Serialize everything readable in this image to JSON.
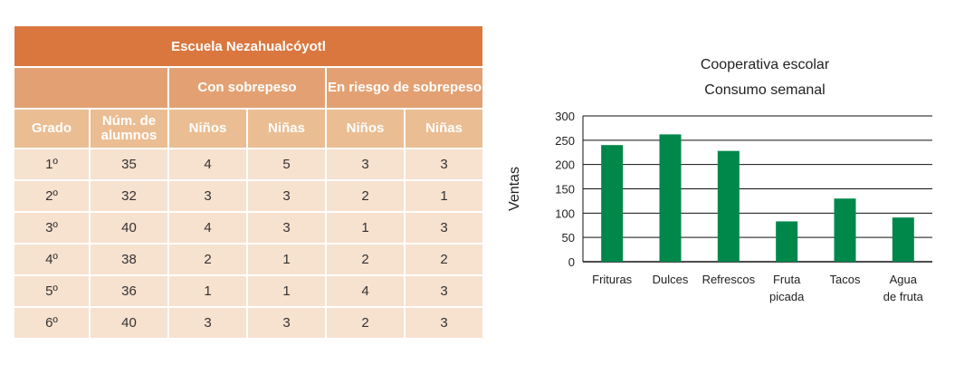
{
  "table": {
    "title": "Escuela Nezahualcóyotl",
    "groups": [
      "Con sobrepeso",
      "En riesgo de sobrepeso"
    ],
    "columns": [
      "Grado",
      "Núm. de alumnos",
      "Niños",
      "Niñas",
      "Niños",
      "Niñas"
    ],
    "rows": [
      [
        "1º",
        "35",
        "4",
        "5",
        "3",
        "3"
      ],
      [
        "2º",
        "32",
        "3",
        "3",
        "2",
        "1"
      ],
      [
        "3º",
        "40",
        "4",
        "3",
        "1",
        "3"
      ],
      [
        "4º",
        "38",
        "2",
        "1",
        "2",
        "2"
      ],
      [
        "5º",
        "36",
        "1",
        "1",
        "4",
        "3"
      ],
      [
        "6º",
        "40",
        "3",
        "3",
        "2",
        "3"
      ]
    ]
  },
  "chart_data": {
    "type": "bar",
    "title": "Cooperativa escolar",
    "subtitle": "Consumo semanal",
    "ylabel": "Ventas",
    "xlabel": "",
    "ylim": [
      0,
      300
    ],
    "yticks": [
      0,
      50,
      100,
      150,
      200,
      250,
      300
    ],
    "grid": true,
    "bar_color": "#00874a",
    "categories": [
      [
        "Frituras"
      ],
      [
        "Dulces"
      ],
      [
        "Refrescos"
      ],
      [
        "Fruta",
        "picada"
      ],
      [
        "Tacos"
      ],
      [
        "Agua",
        "de fruta"
      ]
    ],
    "values": [
      240,
      262,
      228,
      83,
      130,
      91
    ]
  }
}
